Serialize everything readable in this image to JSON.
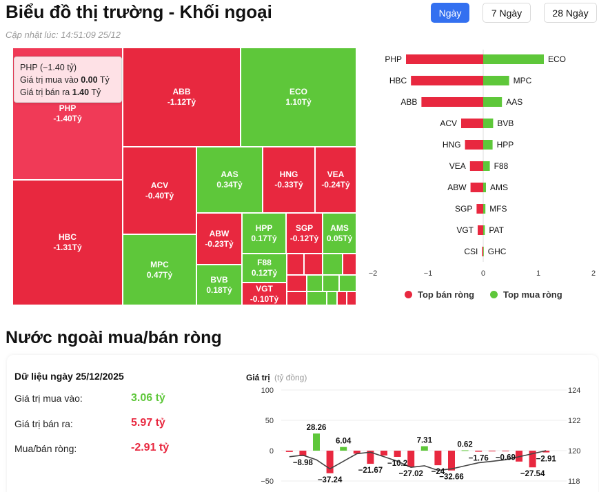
{
  "header": {
    "title": "Biểu đồ thị trường - Khối ngoại",
    "updated": "Cập nhật lúc: 14:51:09 25/12",
    "tabs": [
      "Ngày",
      "7 Ngày",
      "28 Ngày"
    ],
    "active_tab": "Ngày"
  },
  "colors": {
    "sell": "#e8283f",
    "buy": "#5ec73a",
    "accent": "#3370f0",
    "highlight": "#f03a57"
  },
  "tooltip": {
    "title": "PHP (−1.40 tỷ)",
    "buy_label": "Giá trị mua vào",
    "buy_value": "0.00",
    "sell_label": "Giá trị bán ra",
    "sell_value": "1.40",
    "unit": "Tỷ"
  },
  "treemap": [
    {
      "name": "PHP",
      "label": "-1.40Tỷ",
      "sign": "hi"
    },
    {
      "name": "HBC",
      "label": "-1.31Tỷ",
      "sign": "neg"
    },
    {
      "name": "ABB",
      "label": "-1.12Tỷ",
      "sign": "neg"
    },
    {
      "name": "ECO",
      "label": "1.10Tỷ",
      "sign": "pos"
    },
    {
      "name": "ACV",
      "label": "-0.40Tỷ",
      "sign": "neg"
    },
    {
      "name": "MPC",
      "label": "0.47Tỷ",
      "sign": "pos"
    },
    {
      "name": "AAS",
      "label": "0.34Tỷ",
      "sign": "pos"
    },
    {
      "name": "HNG",
      "label": "-0.33Tỷ",
      "sign": "neg"
    },
    {
      "name": "VEA",
      "label": "-0.24Tỷ",
      "sign": "neg"
    },
    {
      "name": "ABW",
      "label": "-0.23Tỷ",
      "sign": "neg"
    },
    {
      "name": "BVB",
      "label": "0.18Tỷ",
      "sign": "pos"
    },
    {
      "name": "HPP",
      "label": "0.17Tỷ",
      "sign": "pos"
    },
    {
      "name": "SGP",
      "label": "-0.12Tỷ",
      "sign": "neg"
    },
    {
      "name": "AMS",
      "label": "0.05Tỷ",
      "sign": "pos"
    },
    {
      "name": "F88",
      "label": "0.12Tỷ",
      "sign": "pos"
    },
    {
      "name": "VGT",
      "label": "-0.10Tỷ",
      "sign": "neg"
    }
  ],
  "legend": {
    "sell": "Top bán ròng",
    "buy": "Top mua ròng"
  },
  "chart_data": [
    {
      "type": "bar",
      "orientation": "horizontal",
      "xlim": [
        -2,
        2
      ],
      "xticks": [
        "−2",
        "−1",
        "0",
        "1",
        "2"
      ],
      "series": [
        {
          "name": "Top bán ròng",
          "categories": [
            "PHP",
            "HBC",
            "ABB",
            "ACV",
            "HNG",
            "VEA",
            "ABW",
            "SGP",
            "VGT",
            "CSI"
          ],
          "values": [
            -1.4,
            -1.31,
            -1.12,
            -0.4,
            -0.33,
            -0.24,
            -0.23,
            -0.12,
            -0.1,
            -0.02
          ]
        },
        {
          "name": "Top mua ròng",
          "categories": [
            "ECO",
            "MPC",
            "AAS",
            "BVB",
            "HPP",
            "F88",
            "AMS",
            "MFS",
            "PAT",
            "GHC"
          ],
          "values": [
            1.1,
            0.47,
            0.34,
            0.18,
            0.17,
            0.12,
            0.05,
            0.04,
            0.03,
            0.01
          ]
        }
      ]
    },
    {
      "type": "bar",
      "title": "Giá trị",
      "subtitle": "(tỷ đồng)",
      "ylim": [
        -50,
        100
      ],
      "yticks": [
        "100",
        "50",
        "0",
        "−50"
      ],
      "y2ticks": [
        "124",
        "122",
        "120",
        "118"
      ],
      "values": [
        -2.1,
        -8.98,
        28.26,
        -37.24,
        6.04,
        -5.0,
        -21.67,
        -8.0,
        -10.2,
        -27.02,
        7.31,
        -24,
        -32.66,
        0.62,
        -1.76,
        -1.2,
        -0.69,
        -18.0,
        -27.54,
        -2.91
      ],
      "data_labels": [
        "",
        "−8.98",
        "28.26",
        "−37.24",
        "6.04",
        "",
        "−21.67",
        "",
        "−10.2",
        "−27.02",
        "7.31",
        "−24",
        "−32.66",
        "0.62",
        "−1.76",
        "",
        "−0.69",
        "",
        "−27.54",
        "−2.91"
      ],
      "line": [
        119.6,
        119.7,
        119.4,
        118.8,
        119.3,
        119.8,
        119.9,
        119.6,
        119.3,
        118.9,
        119.0,
        118.7,
        118.8,
        119.0,
        119.2,
        119.3,
        119.4,
        119.6,
        119.8,
        120.0
      ],
      "line_ylim": [
        118,
        124
      ]
    }
  ],
  "summary": {
    "heading": "Dữ liệu ngày 25/12/2025",
    "buy_label": "Giá trị mua vào:",
    "buy_value": "3.06 tỷ",
    "sell_label": "Giá trị bán ra:",
    "sell_value": "5.97 tỷ",
    "net_label": "Mua/bán ròng:",
    "net_value": "-2.91 tỷ"
  },
  "section_title": "Nước ngoài mua/bán ròng"
}
